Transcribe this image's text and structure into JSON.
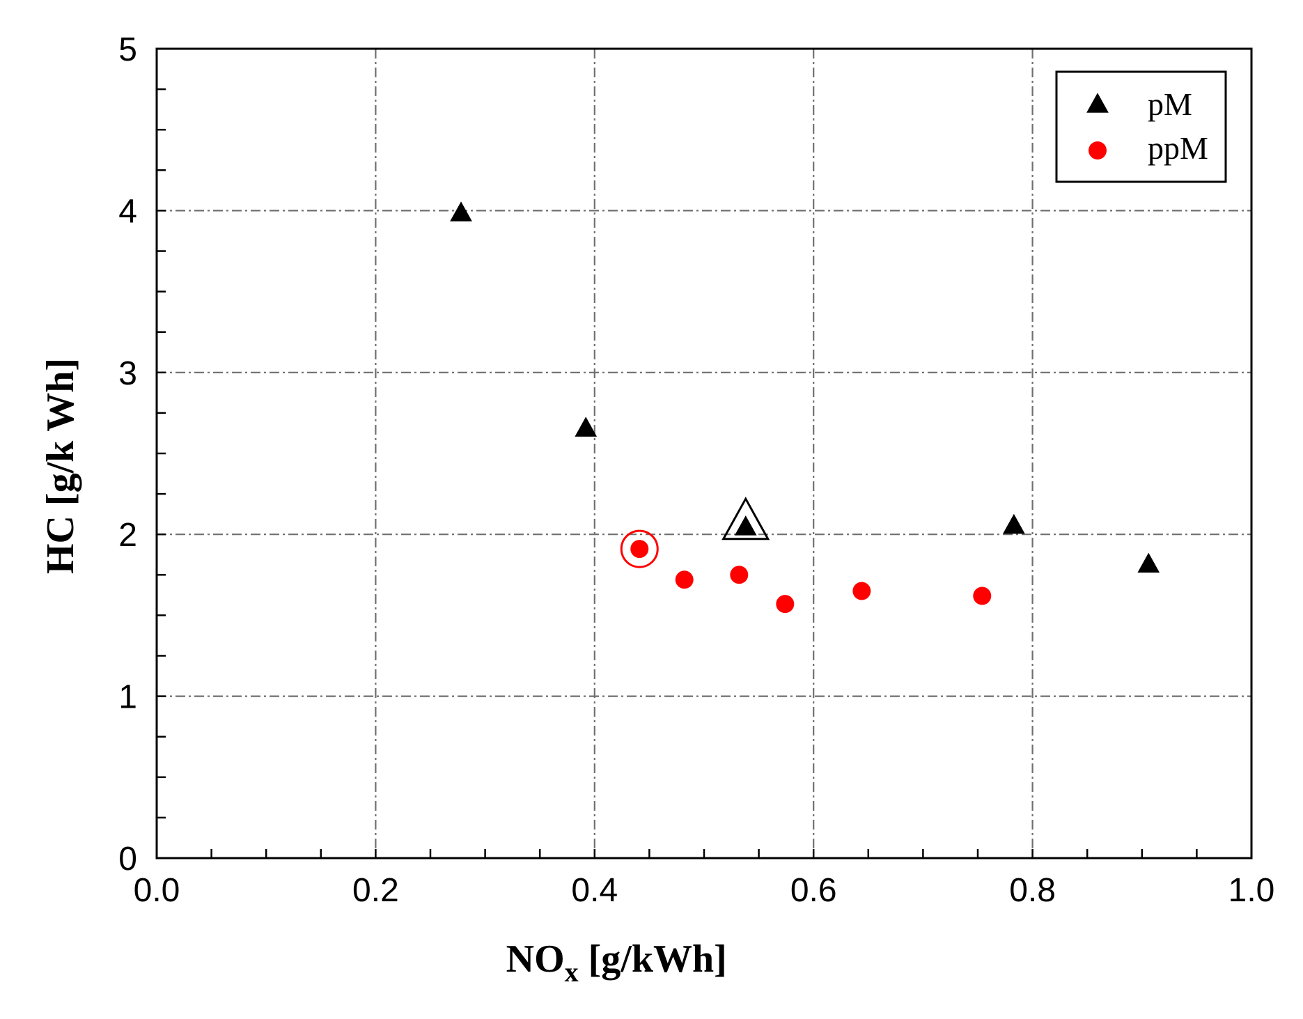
{
  "chart_data": {
    "type": "scatter",
    "title": "",
    "xlabel": "NO",
    "xlabel_subscript": "x",
    "xlabel_unit": " [g/kWh]",
    "ylabel": "HC [g/k Wh]",
    "xlim": [
      0.0,
      1.0
    ],
    "ylim": [
      0,
      5
    ],
    "x_ticks": [
      0.0,
      0.2,
      0.4,
      0.6,
      0.8,
      1.0
    ],
    "x_tick_labels": [
      "0.0",
      "0.2",
      "0.4",
      "0.6",
      "0.8",
      "1.0"
    ],
    "y_ticks": [
      0,
      1,
      2,
      3,
      4,
      5
    ],
    "y_tick_labels": [
      "0",
      "1",
      "2",
      "3",
      "4",
      "5"
    ],
    "x_minor_step": 0.05,
    "y_minor_step": 0.25,
    "grid": true,
    "legend_position": "top-right",
    "series": [
      {
        "name": "pM",
        "marker": "triangle",
        "color": "#000000",
        "points": [
          {
            "x": 0.278,
            "y": 3.98
          },
          {
            "x": 0.392,
            "y": 2.65
          },
          {
            "x": 0.538,
            "y": 2.04,
            "highlighted": true
          },
          {
            "x": 0.783,
            "y": 2.05
          },
          {
            "x": 0.906,
            "y": 1.81
          }
        ]
      },
      {
        "name": "ppM",
        "marker": "circle",
        "color": "#ff0000",
        "points": [
          {
            "x": 0.441,
            "y": 1.91,
            "highlighted": true
          },
          {
            "x": 0.482,
            "y": 1.72
          },
          {
            "x": 0.532,
            "y": 1.75
          },
          {
            "x": 0.574,
            "y": 1.57
          },
          {
            "x": 0.644,
            "y": 1.65
          },
          {
            "x": 0.754,
            "y": 1.62
          }
        ]
      }
    ]
  }
}
